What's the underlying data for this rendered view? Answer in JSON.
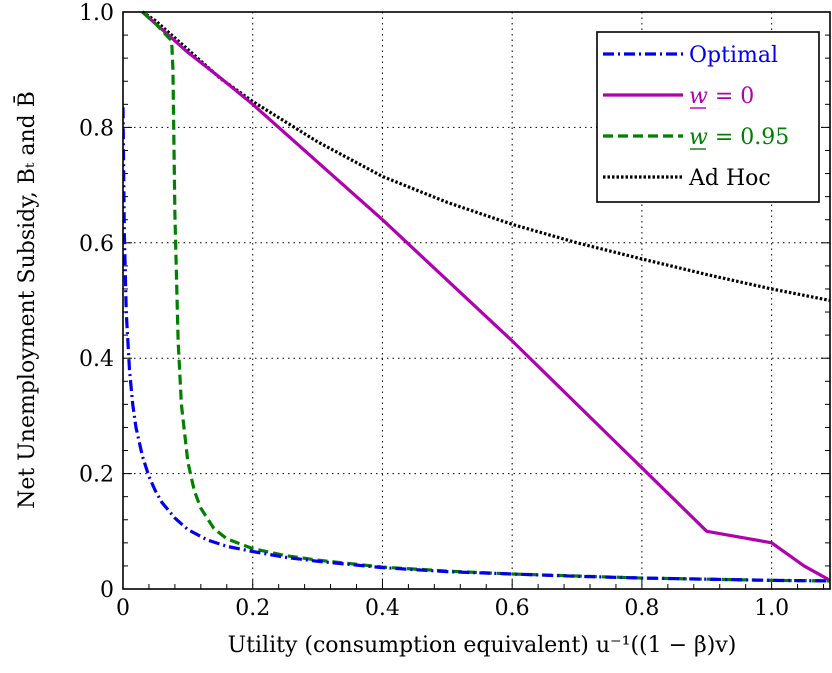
{
  "chart_data": {
    "type": "line",
    "title": "",
    "xlabel": "Utility (consumption equivalent) u⁻¹((1 − β)v)",
    "ylabel": "Net Unemployment Subsidy, Bₜ and B̄",
    "xlim": [
      0,
      1.09
    ],
    "ylim": [
      0,
      1.0
    ],
    "x_ticks": [
      "0",
      "0.2",
      "0.4",
      "0.6",
      "0.8",
      "1.0"
    ],
    "x_tick_values": [
      0,
      0.2,
      0.4,
      0.6,
      0.8,
      1.0
    ],
    "y_ticks": [
      "0",
      "0.2",
      "0.4",
      "0.6",
      "0.8",
      "1.0"
    ],
    "y_tick_values": [
      0,
      0.2,
      0.4,
      0.6,
      0.8,
      1.0
    ],
    "grid": true,
    "legend_position": "top-right",
    "series": [
      {
        "name": "Optimal",
        "color": "#0000ee",
        "style": "dash-dot",
        "x": [
          0.0,
          0.002,
          0.005,
          0.01,
          0.015,
          0.02,
          0.03,
          0.04,
          0.05,
          0.06,
          0.08,
          0.1,
          0.13,
          0.16,
          0.2,
          0.25,
          0.3,
          0.4,
          0.5,
          0.6,
          0.7,
          0.8,
          0.9,
          1.0,
          1.09
        ],
        "y": [
          0.835,
          0.62,
          0.48,
          0.38,
          0.32,
          0.28,
          0.23,
          0.195,
          0.17,
          0.15,
          0.123,
          0.103,
          0.085,
          0.074,
          0.065,
          0.055,
          0.048,
          0.037,
          0.03,
          0.026,
          0.022,
          0.019,
          0.017,
          0.015,
          0.014
        ]
      },
      {
        "name": "w = 0",
        "color": "#b000b0",
        "style": "solid",
        "x": [
          0.03,
          0.05,
          0.08,
          0.1,
          0.15,
          0.2,
          0.3,
          0.4,
          0.5,
          0.6,
          0.7,
          0.8,
          0.9,
          1.0,
          1.05,
          1.09
        ],
        "y": [
          1.0,
          0.98,
          0.95,
          0.93,
          0.886,
          0.84,
          0.74,
          0.64,
          0.535,
          0.43,
          0.32,
          0.21,
          0.1,
          0.08,
          0.04,
          0.015
        ]
      },
      {
        "name": "w = 0.95",
        "color": "#008000",
        "style": "dashed",
        "x": [
          0.03,
          0.05,
          0.075,
          0.077,
          0.08,
          0.085,
          0.09,
          0.1,
          0.11,
          0.12,
          0.14,
          0.16,
          0.2,
          0.25,
          0.3,
          0.4,
          0.5,
          0.6,
          0.8,
          1.0,
          1.09
        ],
        "y": [
          1.0,
          0.98,
          0.95,
          0.9,
          0.65,
          0.43,
          0.32,
          0.22,
          0.17,
          0.14,
          0.105,
          0.087,
          0.07,
          0.058,
          0.05,
          0.038,
          0.031,
          0.026,
          0.019,
          0.015,
          0.014
        ]
      },
      {
        "name": "Ad Hoc",
        "color": "#000000",
        "style": "dotted",
        "x": [
          0.03,
          0.05,
          0.1,
          0.15,
          0.2,
          0.3,
          0.4,
          0.5,
          0.6,
          0.7,
          0.8,
          0.9,
          1.0,
          1.09
        ],
        "y": [
          1.0,
          0.985,
          0.935,
          0.885,
          0.845,
          0.775,
          0.715,
          0.67,
          0.632,
          0.6,
          0.572,
          0.545,
          0.52,
          0.5
        ]
      }
    ],
    "legend": {
      "entries": [
        {
          "label": "Optimal",
          "color": "#0000ee",
          "style": "dash-dot",
          "underline_w": false
        },
        {
          "label_var": "w",
          "label_rest": " = 0",
          "color": "#b000b0",
          "style": "solid",
          "underline_w": true
        },
        {
          "label_var": "w",
          "label_rest": " = 0.95",
          "color": "#008000",
          "style": "dashed",
          "underline_w": true
        },
        {
          "label": "Ad Hoc",
          "color": "#000000",
          "style": "dotted",
          "underline_w": false
        }
      ]
    }
  }
}
